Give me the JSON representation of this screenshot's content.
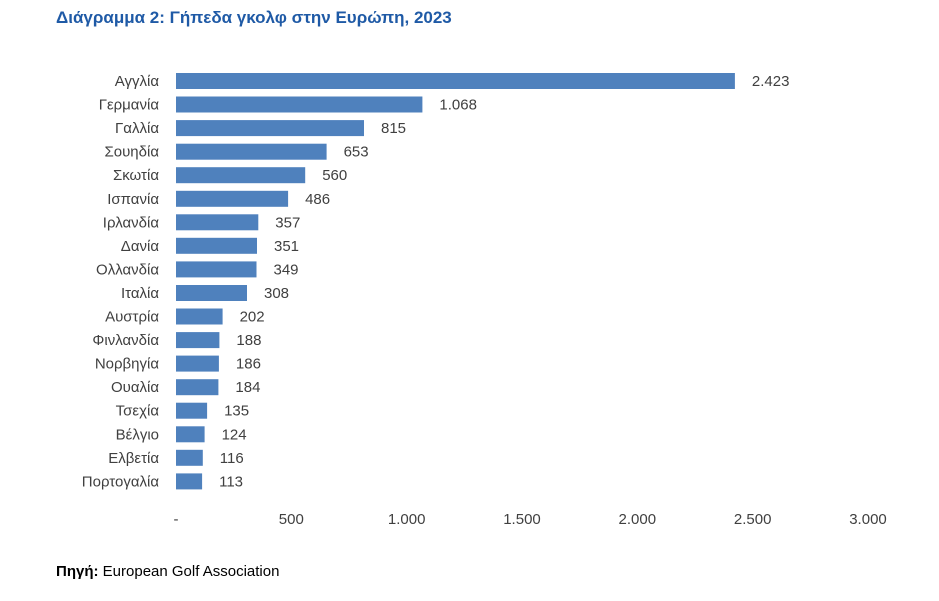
{
  "title": "Διάγραμμα 2: Γήπεδα γκολφ στην Ευρώπη, 2023",
  "source": {
    "label": "Πηγή:",
    "text": "European Golf Association"
  },
  "colors": {
    "bar": "#4f81bd",
    "title": "#1f5aa6",
    "text": "#404040"
  },
  "chart_data": {
    "type": "bar",
    "orientation": "horizontal",
    "title": "Διάγραμμα 2: Γήπεδα γκολφ στην Ευρώπη, 2023",
    "categories": [
      "Αγγλία",
      "Γερμανία",
      "Γαλλία",
      "Σουηδία",
      "Σκωτία",
      "Ισπανία",
      "Ιρλανδία",
      "Δανία",
      "Ολλανδία",
      "Ιταλία",
      "Αυστρία",
      "Φινλανδία",
      "Νορβηγία",
      "Ουαλία",
      "Τσεχία",
      "Βέλγιο",
      "Ελβετία",
      "Πορτογαλία"
    ],
    "values": [
      2423,
      1068,
      815,
      653,
      560,
      486,
      357,
      351,
      349,
      308,
      202,
      188,
      186,
      184,
      135,
      124,
      116,
      113
    ],
    "value_labels": [
      "2.423",
      "1.068",
      "815",
      "653",
      "560",
      "486",
      "357",
      "351",
      "349",
      "308",
      "202",
      "188",
      "186",
      "184",
      "135",
      "124",
      "116",
      "113"
    ],
    "xlim": [
      0,
      3000
    ],
    "x_ticks": [
      0,
      500,
      1000,
      1500,
      2000,
      2500,
      3000
    ],
    "x_tick_labels": [
      "-",
      "500",
      "1.000",
      "1.500",
      "2.000",
      "2.500",
      "3.000"
    ],
    "grid": false,
    "legend": "none"
  }
}
